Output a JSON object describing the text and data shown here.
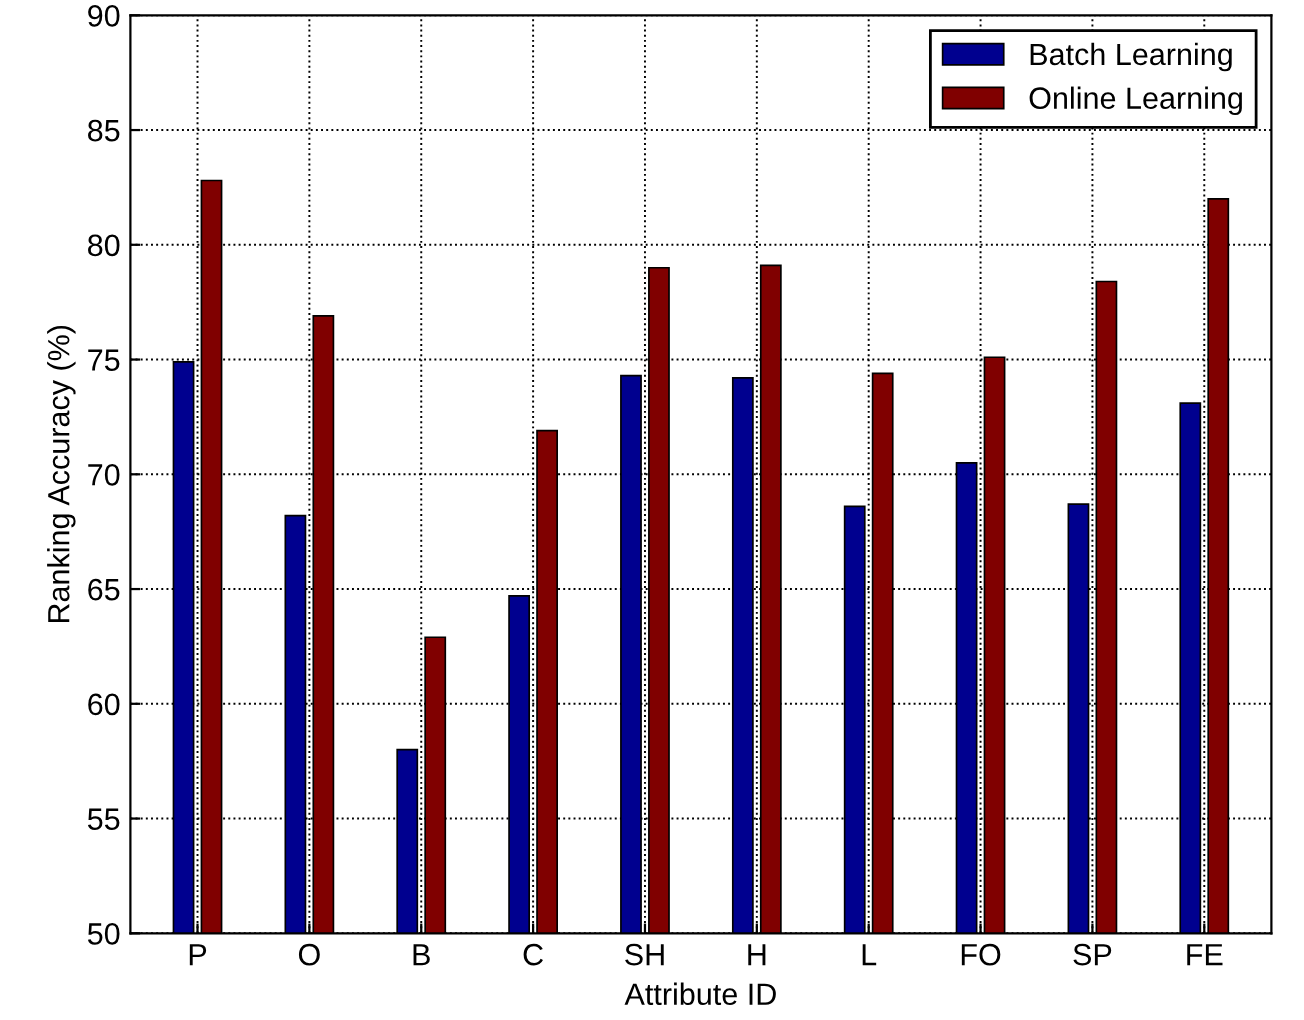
{
  "chart_data": {
    "type": "bar",
    "xlabel": "Attribute ID",
    "ylabel": "Ranking Accuracy (%)",
    "categories": [
      "P",
      "O",
      "B",
      "C",
      "SH",
      "H",
      "L",
      "FO",
      "SP",
      "FE"
    ],
    "series": [
      {
        "name": "Batch Learning",
        "color": "#00008f",
        "values": [
          74.9,
          68.2,
          58.0,
          64.7,
          74.3,
          74.2,
          68.6,
          70.5,
          68.7,
          73.1
        ]
      },
      {
        "name": "Online Learning",
        "color": "#800000",
        "values": [
          82.8,
          76.9,
          62.9,
          71.9,
          79.0,
          79.1,
          74.4,
          75.1,
          78.4,
          82.0
        ]
      }
    ],
    "ylim": [
      50,
      90
    ],
    "yticks": [
      50,
      55,
      60,
      65,
      70,
      75,
      80,
      85,
      90
    ],
    "grid": true,
    "legend": "top right"
  }
}
